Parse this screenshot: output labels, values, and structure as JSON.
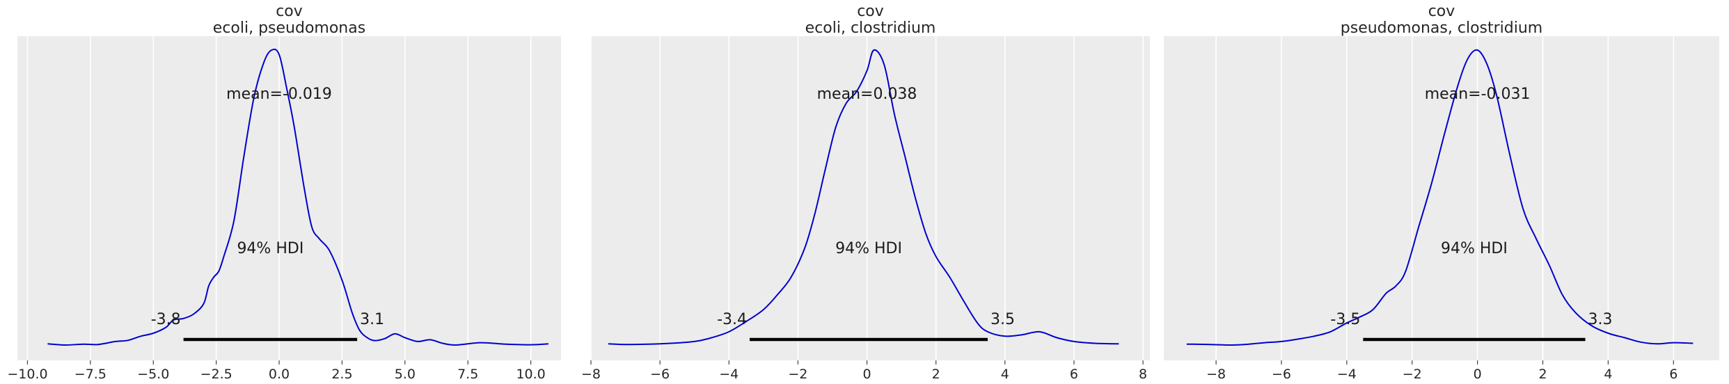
{
  "chart_data": [
    {
      "type": "line",
      "title_lines": [
        "cov",
        "ecoli, pseudomonas"
      ],
      "xlim": [
        -10.4,
        11.2
      ],
      "xticks": [
        -10.0,
        -7.5,
        -5.0,
        -2.5,
        0.0,
        2.5,
        5.0,
        7.5,
        10.0
      ],
      "xtick_labels": [
        "−10.0",
        "−7.5",
        "−5.0",
        "−2.5",
        "0.0",
        "2.5",
        "5.0",
        "7.5",
        "10.0"
      ],
      "grid": true,
      "series": [
        {
          "color": "#0000cc",
          "x": [
            -9.2,
            -8.5,
            -7.8,
            -7.2,
            -6.5,
            -6.0,
            -5.5,
            -5.0,
            -4.5,
            -4.2,
            -3.8,
            -3.4,
            -3.0,
            -2.8,
            -2.6,
            -2.4,
            -2.2,
            -1.8,
            -1.4,
            -1.0,
            -0.6,
            -0.3,
            0.0,
            0.3,
            0.6,
            1.0,
            1.3,
            1.6,
            2.0,
            2.5,
            2.9,
            3.2,
            3.5,
            3.8,
            4.2,
            4.6,
            5.0,
            5.5,
            6.0,
            6.5,
            7.0,
            8.0,
            9.0,
            10.0,
            10.7
          ],
          "y": [
            0.004,
            0.0,
            0.003,
            0.002,
            0.012,
            0.016,
            0.03,
            0.04,
            0.06,
            0.085,
            0.09,
            0.105,
            0.14,
            0.2,
            0.23,
            0.25,
            0.3,
            0.42,
            0.64,
            0.84,
            0.96,
            1.0,
            0.985,
            0.87,
            0.74,
            0.53,
            0.4,
            0.36,
            0.32,
            0.22,
            0.11,
            0.05,
            0.025,
            0.015,
            0.022,
            0.038,
            0.025,
            0.012,
            0.018,
            0.006,
            0.0,
            0.008,
            0.003,
            0.001,
            0.004
          ]
        }
      ],
      "annotations": {
        "mean_label": "mean=-0.019",
        "hdi_label": "94% HDI",
        "hdi_low": -3.8,
        "hdi_high": 3.1,
        "hdi_low_label": "-3.8",
        "hdi_high_label": "3.1"
      }
    },
    {
      "type": "line",
      "title_lines": [
        "cov",
        "ecoli, clostridium"
      ],
      "xlim": [
        -8.0,
        8.2
      ],
      "xticks": [
        -8,
        -6,
        -4,
        -2,
        0,
        2,
        4,
        6,
        8
      ],
      "xtick_labels": [
        "−8",
        "−6",
        "−4",
        "−2",
        "0",
        "2",
        "4",
        "6",
        "8"
      ],
      "grid": true,
      "series": [
        {
          "color": "#0000cc",
          "x": [
            -7.5,
            -7.0,
            -6.0,
            -5.0,
            -4.5,
            -4.0,
            -3.5,
            -3.0,
            -2.6,
            -2.2,
            -1.8,
            -1.5,
            -1.2,
            -0.9,
            -0.6,
            -0.3,
            0.0,
            0.2,
            0.5,
            0.8,
            1.1,
            1.4,
            1.7,
            2.0,
            2.4,
            2.8,
            3.2,
            3.5,
            4.0,
            4.5,
            5.0,
            5.5,
            6.0,
            6.6,
            7.3
          ],
          "y": [
            0.004,
            0.002,
            0.004,
            0.012,
            0.025,
            0.045,
            0.08,
            0.12,
            0.17,
            0.23,
            0.33,
            0.45,
            0.6,
            0.74,
            0.82,
            0.86,
            0.93,
            1.0,
            0.95,
            0.78,
            0.64,
            0.5,
            0.38,
            0.3,
            0.23,
            0.15,
            0.075,
            0.045,
            0.03,
            0.035,
            0.045,
            0.025,
            0.012,
            0.006,
            0.004
          ]
        }
      ],
      "annotations": {
        "mean_label": "mean=0.038",
        "hdi_label": "94% HDI",
        "hdi_low": -3.4,
        "hdi_high": 3.5,
        "hdi_low_label": "-3.4",
        "hdi_high_label": "3.5"
      }
    },
    {
      "type": "line",
      "title_lines": [
        "cov",
        "pseudomonas, clostridium"
      ],
      "xlim": [
        -9.6,
        7.4
      ],
      "xticks": [
        -8,
        -6,
        -4,
        -2,
        0,
        2,
        4,
        6
      ],
      "xtick_labels": [
        "−8",
        "−6",
        "−4",
        "−2",
        "0",
        "2",
        "4",
        "6"
      ],
      "grid": true,
      "series": [
        {
          "color": "#0000cc",
          "x": [
            -8.9,
            -8.2,
            -7.5,
            -7.0,
            -6.5,
            -6.0,
            -5.5,
            -5.0,
            -4.5,
            -4.0,
            -3.6,
            -3.2,
            -2.8,
            -2.5,
            -2.2,
            -1.8,
            -1.4,
            -1.0,
            -0.6,
            -0.3,
            0.0,
            0.3,
            0.6,
            1.0,
            1.4,
            1.8,
            2.2,
            2.6,
            3.0,
            3.5,
            4.0,
            4.5,
            5.0,
            5.5,
            6.0,
            6.6
          ],
          "y": [
            0.003,
            0.002,
            0.0,
            0.003,
            0.008,
            0.012,
            0.02,
            0.03,
            0.045,
            0.075,
            0.095,
            0.12,
            0.175,
            0.2,
            0.25,
            0.4,
            0.55,
            0.72,
            0.88,
            0.97,
            1.0,
            0.95,
            0.84,
            0.64,
            0.46,
            0.36,
            0.27,
            0.17,
            0.11,
            0.065,
            0.04,
            0.025,
            0.01,
            0.004,
            0.008,
            0.006
          ]
        }
      ],
      "annotations": {
        "mean_label": "mean=-0.031",
        "hdi_label": "94% HDI",
        "hdi_low": -3.5,
        "hdi_high": 3.3,
        "hdi_low_label": "-3.5",
        "hdi_high_label": "3.3"
      }
    }
  ],
  "colors": {
    "panel_bg": "#ececec",
    "grid": "#ffffff",
    "curve": "#0000cc",
    "hdi_bar": "#000000",
    "text": "#262626"
  }
}
